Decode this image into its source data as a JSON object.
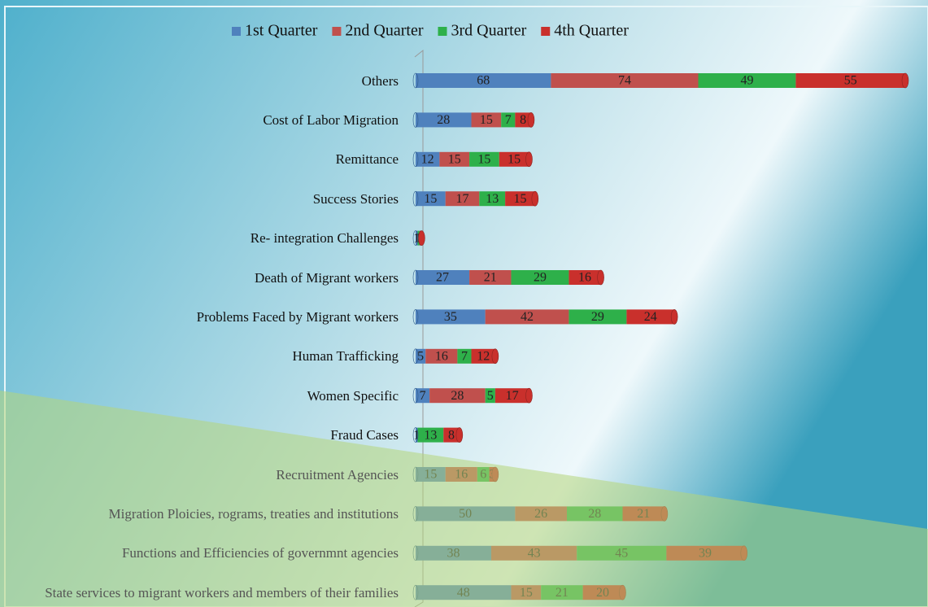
{
  "chart_data": {
    "type": "stacked-bar-horizontal",
    "categories": [
      "Others",
      "Cost of Labor Migration",
      "Remittance",
      "Success Stories",
      "Re- integration Challenges",
      "Death of Migrant workers",
      "Problems Faced by Migrant workers",
      "Human Trafficking",
      "Women Specific",
      "Fraud Cases",
      "Recruitment Agencies",
      "Migration Ploicies, rograms, treaties and institutions",
      "Functions and Efficiencies of governmnt agencies",
      "State services to migrant workers and members of their families"
    ],
    "series": [
      {
        "name": "1st Quarter",
        "color": "#4f81bd",
        "values": [
          68,
          28,
          12,
          15,
          1,
          27,
          35,
          5,
          7,
          1,
          15,
          50,
          38,
          48
        ]
      },
      {
        "name": "2nd Quarter",
        "color": "#c0504d",
        "values": [
          74,
          15,
          15,
          17,
          null,
          21,
          42,
          16,
          28,
          null,
          16,
          26,
          43,
          15
        ]
      },
      {
        "name": "3rd Quarter",
        "color": "#2eb04a",
        "values": [
          49,
          7,
          15,
          13,
          1,
          29,
          29,
          7,
          5,
          13,
          6,
          28,
          45,
          21
        ]
      },
      {
        "name": "4th Quarter",
        "color": "#c9302c",
        "values": [
          55,
          8,
          15,
          15,
          1,
          16,
          24,
          12,
          17,
          8,
          3,
          21,
          39,
          20
        ]
      }
    ],
    "legend": "top"
  }
}
